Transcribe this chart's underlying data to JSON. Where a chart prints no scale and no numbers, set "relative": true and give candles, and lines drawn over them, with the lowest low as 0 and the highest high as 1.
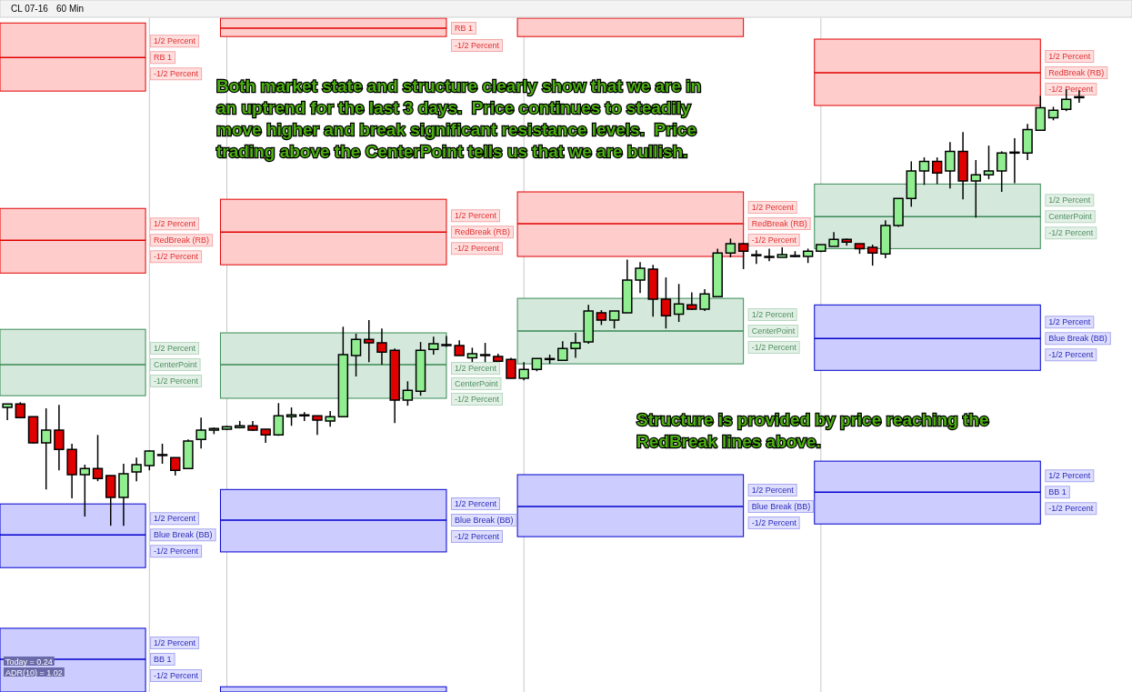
{
  "chart_data": {
    "type": "candlestick",
    "title": "CL 07-16",
    "subtitle": "60 Min",
    "relative": true,
    "grid": "x",
    "categories": [
      null,
      null,
      null,
      null,
      null,
      null,
      null,
      null,
      null,
      null,
      null,
      null,
      null,
      null,
      null,
      null,
      null,
      null,
      null,
      null,
      null,
      null,
      null,
      null,
      null,
      null,
      null,
      null,
      null,
      null,
      null,
      null,
      null,
      null,
      null,
      null,
      null,
      null,
      null,
      null,
      null,
      null,
      null,
      null,
      null,
      null,
      null,
      null,
      null,
      null,
      null,
      null,
      null,
      null,
      null,
      null,
      null,
      null,
      null,
      null,
      null,
      null,
      null,
      null,
      null,
      null,
      null,
      null,
      null,
      null,
      null,
      null,
      null,
      null,
      null,
      null,
      null,
      null,
      null,
      null,
      null,
      null,
      null,
      null
    ],
    "ohlc": [
      [
        0.271,
        0.279,
        0.242,
        0.279
      ],
      [
        0.279,
        0.283,
        0.246,
        0.248
      ],
      [
        0.25,
        0.25,
        0.188,
        0.19
      ],
      [
        0.19,
        0.269,
        0.083,
        0.219
      ],
      [
        0.219,
        0.277,
        0.127,
        0.175
      ],
      [
        0.175,
        0.188,
        0.063,
        0.117
      ],
      [
        0.117,
        0.14,
        0.021,
        0.131
      ],
      [
        0.131,
        0.208,
        0.102,
        0.108
      ],
      [
        0.115,
        0.115,
        0,
        0.065
      ],
      [
        0.065,
        0.142,
        0,
        0.119
      ],
      [
        0.123,
        0.156,
        0.102,
        0.14
      ],
      [
        0.138,
        0.173,
        0.127,
        0.171
      ],
      [
        0.163,
        0.188,
        0.142,
        0.163
      ],
      [
        0.156,
        0.156,
        0.115,
        0.127
      ],
      [
        0.131,
        0.198,
        0.131,
        0.194
      ],
      [
        0.198,
        0.248,
        0.177,
        0.219
      ],
      [
        0.219,
        0.225,
        0.21,
        0.223
      ],
      [
        0.221,
        0.229,
        0.219,
        0.227
      ],
      [
        0.225,
        0.24,
        0.223,
        0.229
      ],
      [
        0.229,
        0.24,
        0.217,
        0.219
      ],
      [
        0.221,
        0.221,
        0.19,
        0.208
      ],
      [
        0.208,
        0.281,
        0.206,
        0.252
      ],
      [
        0.25,
        0.271,
        0.229,
        0.254
      ],
      [
        0.254,
        0.26,
        0.24,
        0.252
      ],
      [
        0.252,
        0.252,
        0.208,
        0.242
      ],
      [
        0.24,
        0.263,
        0.227,
        0.25
      ],
      [
        0.25,
        0.456,
        0.25,
        0.392
      ],
      [
        0.39,
        0.44,
        0.342,
        0.427
      ],
      [
        0.427,
        0.471,
        0.375,
        0.419
      ],
      [
        0.419,
        0.452,
        0.369,
        0.398
      ],
      [
        0.402,
        0.406,
        0.235,
        0.288
      ],
      [
        0.288,
        0.331,
        0.275,
        0.31
      ],
      [
        0.308,
        0.421,
        0.298,
        0.402
      ],
      [
        0.404,
        0.433,
        0.392,
        0.417
      ],
      [
        0.413,
        0.435,
        0.41,
        0.415
      ],
      [
        0.413,
        0.425,
        0.39,
        0.39
      ],
      [
        0.385,
        0.408,
        0.375,
        0.394
      ],
      [
        0.392,
        0.419,
        0.375,
        0.39
      ],
      [
        0.388,
        0.394,
        0.377,
        0.377
      ],
      [
        0.381,
        0.385,
        0.338,
        0.338
      ],
      [
        0.338,
        0.375,
        0.333,
        0.358
      ],
      [
        0.358,
        0.383,
        0.354,
        0.383
      ],
      [
        0.381,
        0.392,
        0.371,
        0.383
      ],
      [
        0.379,
        0.423,
        0.379,
        0.406
      ],
      [
        0.406,
        0.442,
        0.385,
        0.419
      ],
      [
        0.421,
        0.506,
        0.417,
        0.492
      ],
      [
        0.488,
        0.494,
        0.46,
        0.471
      ],
      [
        0.471,
        0.492,
        0.452,
        0.492
      ],
      [
        0.488,
        0.61,
        0.488,
        0.563
      ],
      [
        0.563,
        0.604,
        0.533,
        0.59
      ],
      [
        0.588,
        0.598,
        0.479,
        0.519
      ],
      [
        0.519,
        0.569,
        0.452,
        0.481
      ],
      [
        0.485,
        0.554,
        0.467,
        0.508
      ],
      [
        0.506,
        0.535,
        0.494,
        0.496
      ],
      [
        0.496,
        0.542,
        0.492,
        0.531
      ],
      [
        0.525,
        0.635,
        0.525,
        0.625
      ],
      [
        0.625,
        0.658,
        0.615,
        0.646
      ],
      [
        0.646,
        0.648,
        0.588,
        0.629
      ],
      [
        0.621,
        0.631,
        0.6,
        0.619
      ],
      [
        0.617,
        0.635,
        0.606,
        0.615
      ],
      [
        0.615,
        0.638,
        0.615,
        0.621
      ],
      [
        0.617,
        0.629,
        0.615,
        0.619
      ],
      [
        0.617,
        0.635,
        0.602,
        0.629
      ],
      [
        0.629,
        0.644,
        0.627,
        0.644
      ],
      [
        0.64,
        0.673,
        0.64,
        0.656
      ],
      [
        0.656,
        0.658,
        0.642,
        0.65
      ],
      [
        0.646,
        0.646,
        0.623,
        0.635
      ],
      [
        0.638,
        0.644,
        0.596,
        0.625
      ],
      [
        0.623,
        0.7,
        0.613,
        0.688
      ],
      [
        0.688,
        0.75,
        0.685,
        0.75
      ],
      [
        0.75,
        0.835,
        0.731,
        0.813
      ],
      [
        0.813,
        0.844,
        0.781,
        0.835
      ],
      [
        0.835,
        0.844,
        0.783,
        0.808
      ],
      [
        0.813,
        0.879,
        0.773,
        0.858
      ],
      [
        0.858,
        0.902,
        0.748,
        0.79
      ],
      [
        0.79,
        0.838,
        0.706,
        0.804
      ],
      [
        0.804,
        0.871,
        0.794,
        0.813
      ],
      [
        0.813,
        0.858,
        0.765,
        0.854
      ],
      [
        0.854,
        0.888,
        0.785,
        0.856
      ],
      [
        0.854,
        0.921,
        0.838,
        0.908
      ],
      [
        0.906,
        0.985,
        0.906,
        0.958
      ],
      [
        0.935,
        0.96,
        0.929,
        0.952
      ],
      [
        0.954,
        1,
        0.95,
        0.977
      ],
      [
        0.981,
        0.998,
        0.969,
        0.983
      ]
    ],
    "colors": [
      "#90ee90",
      "#e00000",
      "#e00000",
      "#90ee90",
      "#e00000",
      "#e00000",
      "#90ee90",
      "#e00000",
      "#e00000",
      "#90ee90",
      "#90ee90",
      "#90ee90",
      "#90ee90",
      "#e00000",
      "#90ee90",
      "#90ee90",
      "#90ee90",
      "#90ee90",
      "#90ee90",
      "#e00000",
      "#e00000",
      "#90ee90",
      "#90ee90",
      "#e00000",
      "#e00000",
      "#90ee90",
      "#90ee90",
      "#90ee90",
      "#e00000",
      "#e00000",
      "#e00000",
      "#90ee90",
      "#90ee90",
      "#90ee90",
      "#90ee90",
      "#e00000",
      "#90ee90",
      "#e00000",
      "#e00000",
      "#e00000",
      "#90ee90",
      "#90ee90",
      "#90ee90",
      "#90ee90",
      "#90ee90",
      "#90ee90",
      "#e00000",
      "#90ee90",
      "#90ee90",
      "#90ee90",
      "#e00000",
      "#e00000",
      "#90ee90",
      "#e00000",
      "#90ee90",
      "#90ee90",
      "#90ee90",
      "#e00000",
      "#e00000",
      "#e00000",
      "#90ee90",
      "#90ee90",
      "#90ee90",
      "#90ee90",
      "#90ee90",
      "#e00000",
      "#e00000",
      "#e00000",
      "#90ee90",
      "#90ee90",
      "#90ee90",
      "#90ee90",
      "#e00000",
      "#90ee90",
      "#e00000",
      "#90ee90",
      "#90ee90",
      "#90ee90",
      "#90ee90",
      "#90ee90",
      "#90ee90",
      "#90ee90",
      "#90ee90",
      "#90ee90"
    ],
    "annotations": [
      "Both market state and structure clearly show that we are in an uptrend for the last 3 days.  Price continues to steadily move higher and break significant resistance levels.  Price trading above the CenterPoint tells us that we are bullish.",
      "Structure is provided by price reaching the RedBreak lines above.",
      "Today = 0.24",
      "ADR(10) = 1.02",
      "1/2 Percent",
      "RB 1",
      "-1/2 Percent",
      "1/2 Percent",
      "RedBreak (RB)",
      "-1/2 Percent",
      "1/2 Percent",
      "CenterPoint",
      "-1/2 Percent",
      "1/2 Percent",
      "Blue Break (BB)",
      "-1/2 Percent",
      "1/2 Percent",
      "BB 1",
      "-1/2 Percent",
      "RB 1",
      "-1/2 Percent",
      "1/2 Percent",
      "RedBreak (RB)",
      "-1/2 Percent",
      "1/2 Percent",
      "CenterPoint",
      "-1/2 Percent",
      "1/2 Percent",
      "Blue Break (BB)",
      "-1/2 Percent",
      "1/2 Percent",
      "RedBreak (RB)",
      "-1/2 Percent",
      "1/2 Percent",
      "CenterPoint",
      "-1/2 Percent",
      "1/2 Percent",
      "Blue Break (BB)",
      "-1/2 Percent",
      "1/2 Percent",
      "RedBreak (RB)",
      "-1/2 Percent",
      "1/2 Percent",
      "CenterPoint",
      "-1/2 Percent",
      "1/2 Percent",
      "Blue Break (BB)",
      "-1/2 Percent",
      "1/2 Percent",
      "BB 1",
      "-1/2 Percent"
    ]
  }
}
